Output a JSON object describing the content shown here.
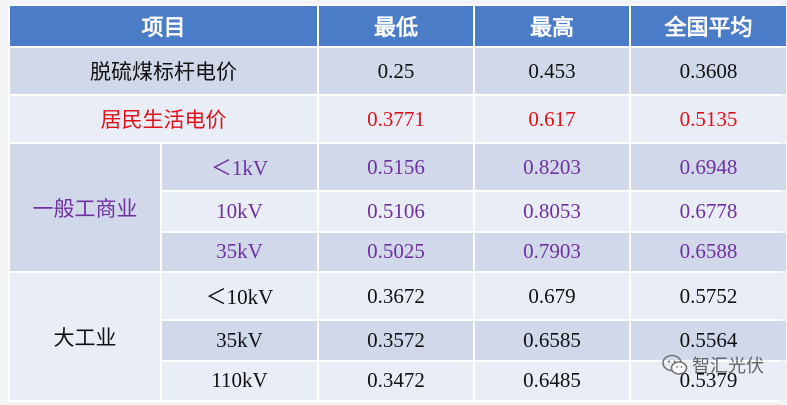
{
  "header": [
    "项目",
    "最低",
    "最高",
    "全国平均"
  ],
  "rows_single": [
    {
      "label": "脱硫煤标杆电价",
      "low": "0.25",
      "high": "0.453",
      "avg": "0.3608"
    },
    {
      "label": "居民生活电价",
      "low": "0.3771",
      "high": "0.617",
      "avg": "0.5135"
    }
  ],
  "group_commercial": {
    "label": "一般工商业",
    "rows": [
      {
        "voltage": "＜1kV",
        "low": "0.5156",
        "high": "0.8203",
        "avg": "0.6948"
      },
      {
        "voltage": "10kV",
        "low": "0.5106",
        "high": "0.8053",
        "avg": "0.6778"
      },
      {
        "voltage": "35kV",
        "low": "0.5025",
        "high": "0.7903",
        "avg": "0.6588"
      }
    ]
  },
  "group_industry": {
    "label": "大工业",
    "rows": [
      {
        "voltage": "＜10kV",
        "low": "0.3672",
        "high": "0.679",
        "avg": "0.5752"
      },
      {
        "voltage": "35kV",
        "low": "0.3572",
        "high": "0.6585",
        "avg": "0.5564"
      },
      {
        "voltage": "110kV",
        "low": "0.3472",
        "high": "0.6485",
        "avg": "0.5379"
      }
    ]
  },
  "watermark": {
    "text": "智汇光伏",
    "icon": "wechat-icon"
  },
  "colors": {
    "header_bg": "#4a7cc8",
    "row_dark": "#d0d8ea",
    "row_light": "#e9edf5",
    "red": "#e0101a",
    "purple": "#7030a0"
  }
}
